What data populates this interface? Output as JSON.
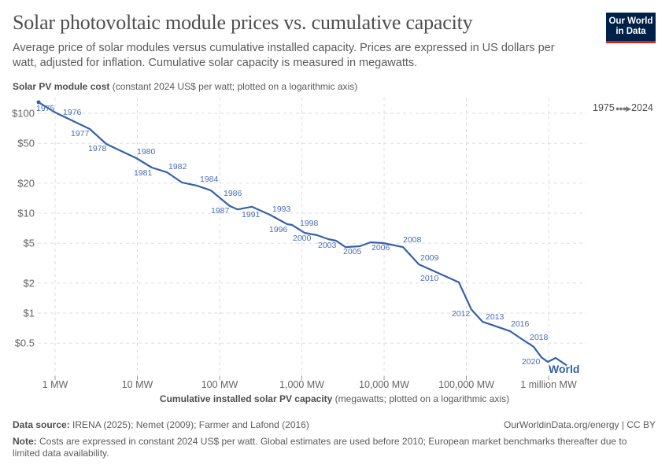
{
  "header": {
    "title": "Solar photovoltaic module prices vs. cumulative capacity",
    "subtitle": "Average price of solar modules versus cumulative installed capacity. Prices are expressed in US dollars per watt, adjusted for inflation. Cumulative solar capacity is measured in megawatts.",
    "logo_line1": "Our World",
    "logo_line2": "in Data"
  },
  "timeline": {
    "start": "1975",
    "end": "2024",
    "arrow": "●●●▶"
  },
  "footer": {
    "source_label": "Data source:",
    "source_text": " IRENA (2025); Nemet (2009); Farmer and Lafond (2016)",
    "credit": "OurWorldinData.org/energy | CC BY",
    "note_label": "Note:",
    "note_text": " Costs are expressed in constant 2024 US$ per watt. Global estimates are used before 2010; European market benchmarks thereafter due to limited data availability."
  },
  "chart_data": {
    "type": "line",
    "ylabel_bold": "Solar PV module cost",
    "ylabel_rest": " (constant 2024 US$ per watt; plotted on a logarithmic axis)",
    "xlabel_bold": "Cumulative installed solar PV capacity",
    "xlabel_rest": " (megawatts; plotted on a logarithmic axis)",
    "x_scale": "log",
    "y_scale": "log",
    "grid": true,
    "x_ticks": [
      {
        "value": 1,
        "label": "1 MW"
      },
      {
        "value": 10,
        "label": "10 MW"
      },
      {
        "value": 100,
        "label": "100 MW"
      },
      {
        "value": 1000,
        "label": "1,000 MW"
      },
      {
        "value": 10000,
        "label": "10,000 MW"
      },
      {
        "value": 100000,
        "label": "100,000 MW"
      },
      {
        "value": 1000000,
        "label": "1 million MW"
      }
    ],
    "y_ticks": [
      {
        "value": 100,
        "label": "$100"
      },
      {
        "value": 50,
        "label": "$50"
      },
      {
        "value": 20,
        "label": "$20"
      },
      {
        "value": 10,
        "label": "$10"
      },
      {
        "value": 5,
        "label": "$5"
      },
      {
        "value": 2,
        "label": "$2"
      },
      {
        "value": 1,
        "label": "$1"
      },
      {
        "value": 0.5,
        "label": "$0.5"
      }
    ],
    "series": [
      {
        "name": "World",
        "color": "#3461aa",
        "points": [
          {
            "x": 0.63,
            "y": 129,
            "label": "1975"
          },
          {
            "x": 1.0,
            "y": 102,
            "label": "1976"
          },
          {
            "x": 2.64,
            "y": 69.6,
            "label": "1977"
          },
          {
            "x": 4.19,
            "y": 49.3,
            "label": "1978"
          },
          {
            "x": 9.7,
            "y": 35.6,
            "label": "1980"
          },
          {
            "x": 15.0,
            "y": 28.6,
            "label": "1981"
          },
          {
            "x": 22.8,
            "y": 25.7,
            "label": "1982"
          },
          {
            "x": 34.7,
            "y": 20.3
          },
          {
            "x": 52.8,
            "y": 18.9,
            "label": "1984"
          },
          {
            "x": 78.5,
            "y": 16.9,
            "label": "1986"
          },
          {
            "x": 133,
            "y": 11.8,
            "label": "1987"
          },
          {
            "x": 166,
            "y": 10.9
          },
          {
            "x": 247,
            "y": 11.6,
            "label": "1991"
          },
          {
            "x": 409,
            "y": 9.65,
            "label": "1993"
          },
          {
            "x": 665,
            "y": 7.76
          },
          {
            "x": 759,
            "y": 7.63,
            "label": "1996"
          },
          {
            "x": 1080,
            "y": 6.36,
            "label": "2000"
          },
          {
            "x": 1540,
            "y": 6.02,
            "label": "1998"
          },
          {
            "x": 2090,
            "y": 5.5
          },
          {
            "x": 2610,
            "y": 5.3,
            "label": "2003"
          },
          {
            "x": 3400,
            "y": 4.58,
            "label": "2005"
          },
          {
            "x": 5050,
            "y": 4.67
          },
          {
            "x": 6870,
            "y": 5.11,
            "label": "2006"
          },
          {
            "x": 9780,
            "y": 5.02
          },
          {
            "x": 17000,
            "y": 4.58,
            "label": "2008"
          },
          {
            "x": 26400,
            "y": 3.08,
            "label": "2009"
          },
          {
            "x": 81100,
            "y": 2.03,
            "label": "2010"
          },
          {
            "x": 115000,
            "y": 1.09,
            "label": "2012"
          },
          {
            "x": 157000,
            "y": 0.82,
            "label": "2013"
          },
          {
            "x": 340000,
            "y": 0.66,
            "label": "2016"
          },
          {
            "x": 442000,
            "y": 0.57
          },
          {
            "x": 658000,
            "y": 0.46,
            "label": "2018"
          },
          {
            "x": 820000,
            "y": 0.36,
            "label": "2020"
          },
          {
            "x": 978000,
            "y": 0.325
          },
          {
            "x": 1220000,
            "y": 0.356
          },
          {
            "x": 1660000,
            "y": 0.3
          }
        ]
      }
    ]
  }
}
